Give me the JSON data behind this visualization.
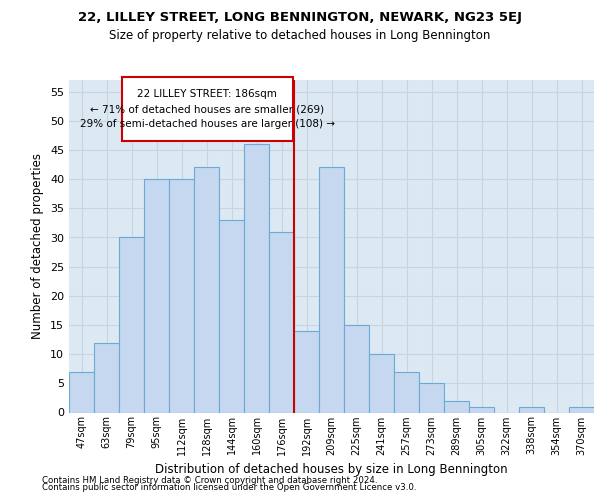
{
  "title1": "22, LILLEY STREET, LONG BENNINGTON, NEWARK, NG23 5EJ",
  "title2": "Size of property relative to detached houses in Long Bennington",
  "xlabel": "Distribution of detached houses by size in Long Bennington",
  "ylabel": "Number of detached properties",
  "categories": [
    "47sqm",
    "63sqm",
    "79sqm",
    "95sqm",
    "112sqm",
    "128sqm",
    "144sqm",
    "160sqm",
    "176sqm",
    "192sqm",
    "209sqm",
    "225sqm",
    "241sqm",
    "257sqm",
    "273sqm",
    "289sqm",
    "305sqm",
    "322sqm",
    "338sqm",
    "354sqm",
    "370sqm"
  ],
  "values": [
    7,
    12,
    30,
    40,
    40,
    42,
    33,
    46,
    31,
    14,
    42,
    15,
    10,
    7,
    5,
    2,
    1,
    0,
    1,
    0,
    1
  ],
  "bar_color": "#c5d8ef",
  "bar_edge_color": "#6aaad4",
  "vline_x": 8.5,
  "vline_color": "#cc0000",
  "annotation_line1": "22 LILLEY STREET: 186sqm",
  "annotation_line2": "← 71% of detached houses are smaller (269)",
  "annotation_line3": "29% of semi-detached houses are larger (108) →",
  "annotation_box_edge_color": "#cc0000",
  "ylim": [
    0,
    57
  ],
  "ytick_max": 55,
  "ytick_step": 5,
  "grid_color": "#c8d4e0",
  "bg_color": "#dce8f2",
  "footer1": "Contains HM Land Registry data © Crown copyright and database right 2024.",
  "footer2": "Contains public sector information licensed under the Open Government Licence v3.0."
}
